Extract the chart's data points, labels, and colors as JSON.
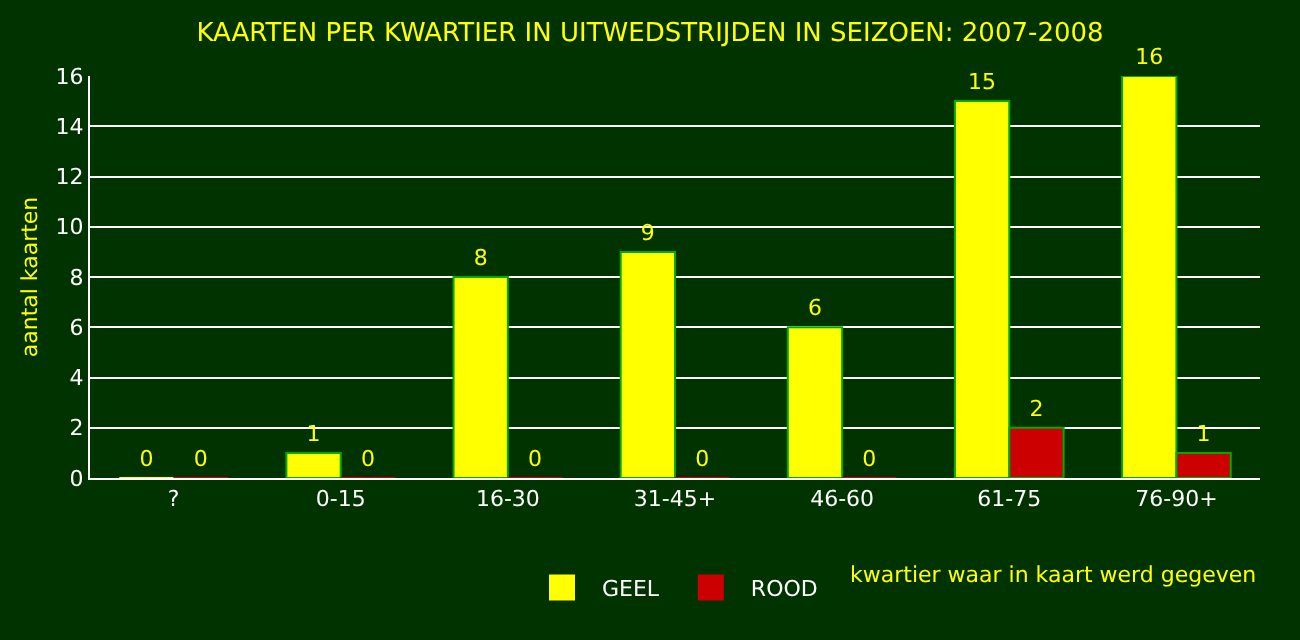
{
  "chart_data": {
    "type": "bar",
    "title": "KAARTEN PER KWARTIER IN UITWEDSTRIJDEN IN SEIZOEN: 2007-2008",
    "xlabel": "kwartier waar in kaart werd gegeven",
    "ylabel": "aantal kaarten",
    "categories": [
      "?",
      "0-15",
      "16-30",
      "31-45+",
      "46-60",
      "61-75",
      "76-90+"
    ],
    "series": [
      {
        "name": "GEEL",
        "color": "#ffff00",
        "values": [
          0,
          1,
          8,
          9,
          6,
          15,
          16
        ]
      },
      {
        "name": "ROOD",
        "color": "#cc0000",
        "values": [
          0,
          0,
          0,
          0,
          0,
          2,
          1
        ]
      }
    ],
    "ylim": [
      0,
      16
    ],
    "yticks": [
      0,
      2,
      4,
      6,
      8,
      10,
      12,
      14,
      16
    ],
    "grid": "y",
    "legend": "bottom",
    "data_labels": true
  }
}
